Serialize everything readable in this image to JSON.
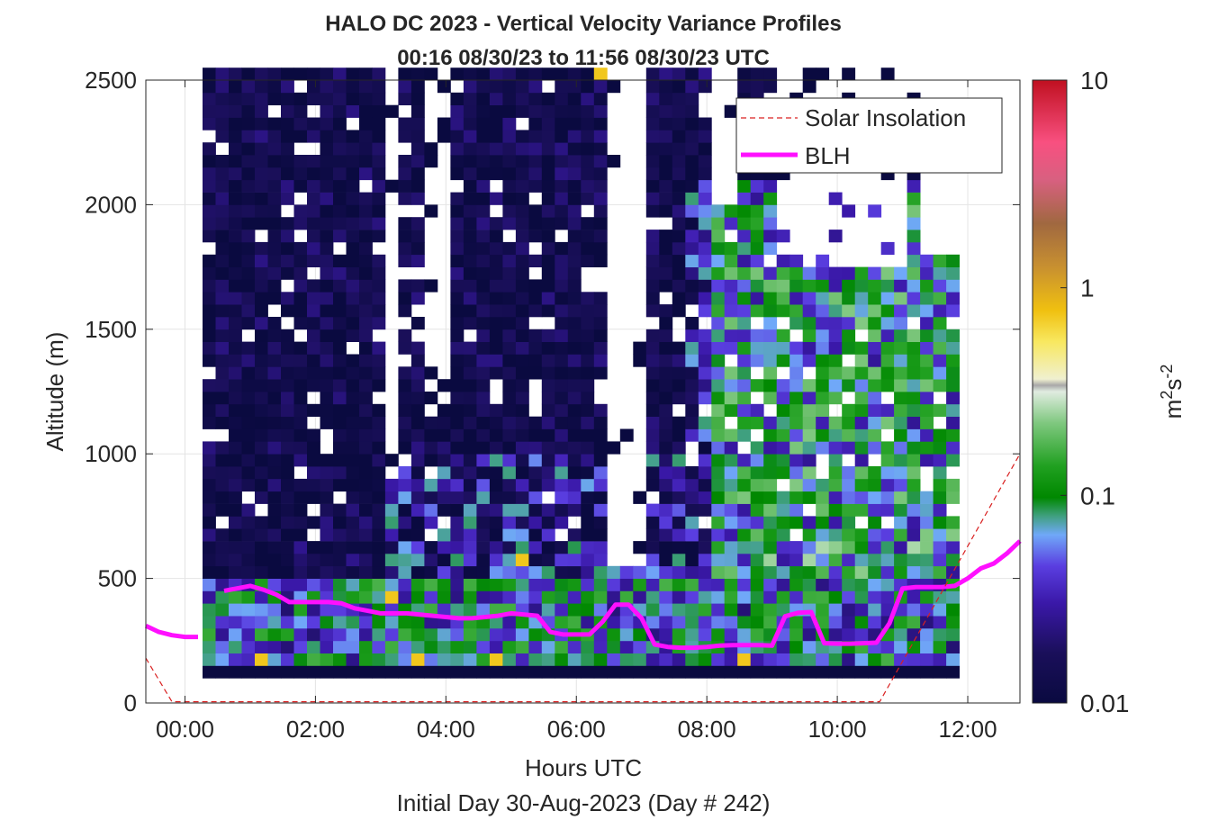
{
  "chart_data": {
    "type": "heatmap",
    "title": "HALO DC 2023 - Vertical Velocity Variance Profiles",
    "subtitle": "00:16 08/30/23 to 11:56 08/30/23  UTC",
    "xlabel": "Hours UTC",
    "xlabel2": "Initial Day 30-Aug-2023 (Day # 242)",
    "ylabel": "Altitude (m)",
    "xlim_hours": [
      -0.6,
      12.8
    ],
    "ylim": [
      0,
      2500
    ],
    "x_ticks": [
      0,
      2,
      4,
      6,
      8,
      10,
      12
    ],
    "x_tick_labels": [
      "00:00",
      "02:00",
      "04:00",
      "06:00",
      "08:00",
      "10:00",
      "12:00"
    ],
    "y_ticks": [
      0,
      500,
      1000,
      1500,
      2000,
      2500
    ],
    "y_tick_labels": [
      "0",
      "500",
      "1000",
      "1500",
      "2000",
      "2500"
    ],
    "grid": true,
    "colorbar": {
      "label": "m²s⁻²",
      "label_base": "m",
      "label_sup1": "2",
      "label_mid": "s",
      "label_sup2": "-2",
      "scale": "log",
      "range": [
        0.01,
        10
      ],
      "ticks": [
        0.01,
        0.1,
        1,
        10
      ],
      "tick_labels": [
        "0.01",
        "0.1",
        "1",
        "10"
      ]
    },
    "variance_grid": {
      "x_start_hours": 0.27,
      "x_step_hours": 0.2,
      "y_start_m": 100,
      "y_step_m": 50,
      "rows": 49
    },
    "legend": {
      "placement": "top-right",
      "entries": [
        {
          "label": "Solar Insolation",
          "style": "dashed",
          "color": "#d92020"
        },
        {
          "label": "BLH",
          "style": "solid",
          "color": "#ff10ff"
        }
      ]
    },
    "series": [
      {
        "name": "BLH",
        "x": [
          -0.6,
          -0.4,
          -0.2,
          0.0,
          0.2,
          0.4,
          0.6,
          0.8,
          1.0,
          1.2,
          1.4,
          1.6,
          1.8,
          2.0,
          2.2,
          2.4,
          2.6,
          2.8,
          3.0,
          3.2,
          3.4,
          3.6,
          3.8,
          4.0,
          4.2,
          4.4,
          4.6,
          4.8,
          5.0,
          5.2,
          5.4,
          5.6,
          5.8,
          6.0,
          6.2,
          6.4,
          6.6,
          6.8,
          7.0,
          7.2,
          7.4,
          7.6,
          7.8,
          8.0,
          8.2,
          8.4,
          8.6,
          8.8,
          9.0,
          9.2,
          9.4,
          9.6,
          9.8,
          10.0,
          10.2,
          10.4,
          10.6,
          10.8,
          11.0,
          11.2,
          11.4,
          11.6,
          11.8,
          12.0,
          12.2,
          12.4,
          12.6,
          12.8
        ],
        "y": [
          310,
          285,
          272,
          265,
          265,
          null,
          450,
          460,
          470,
          455,
          435,
          405,
          405,
          405,
          405,
          400,
          380,
          370,
          360,
          360,
          360,
          355,
          350,
          345,
          340,
          340,
          345,
          350,
          360,
          355,
          350,
          285,
          275,
          275,
          275,
          325,
          395,
          395,
          340,
          235,
          225,
          222,
          222,
          225,
          230,
          232,
          232,
          232,
          230,
          348,
          362,
          365,
          240,
          238,
          238,
          240,
          242,
          320,
          460,
          465,
          465,
          465,
          470,
          500,
          540,
          560,
          600,
          650
        ]
      },
      {
        "name": "Solar Insolation",
        "x": [
          -0.6,
          -0.2,
          10.65,
          12.8
        ],
        "y": [
          180,
          5,
          5,
          1000
        ]
      }
    ]
  }
}
